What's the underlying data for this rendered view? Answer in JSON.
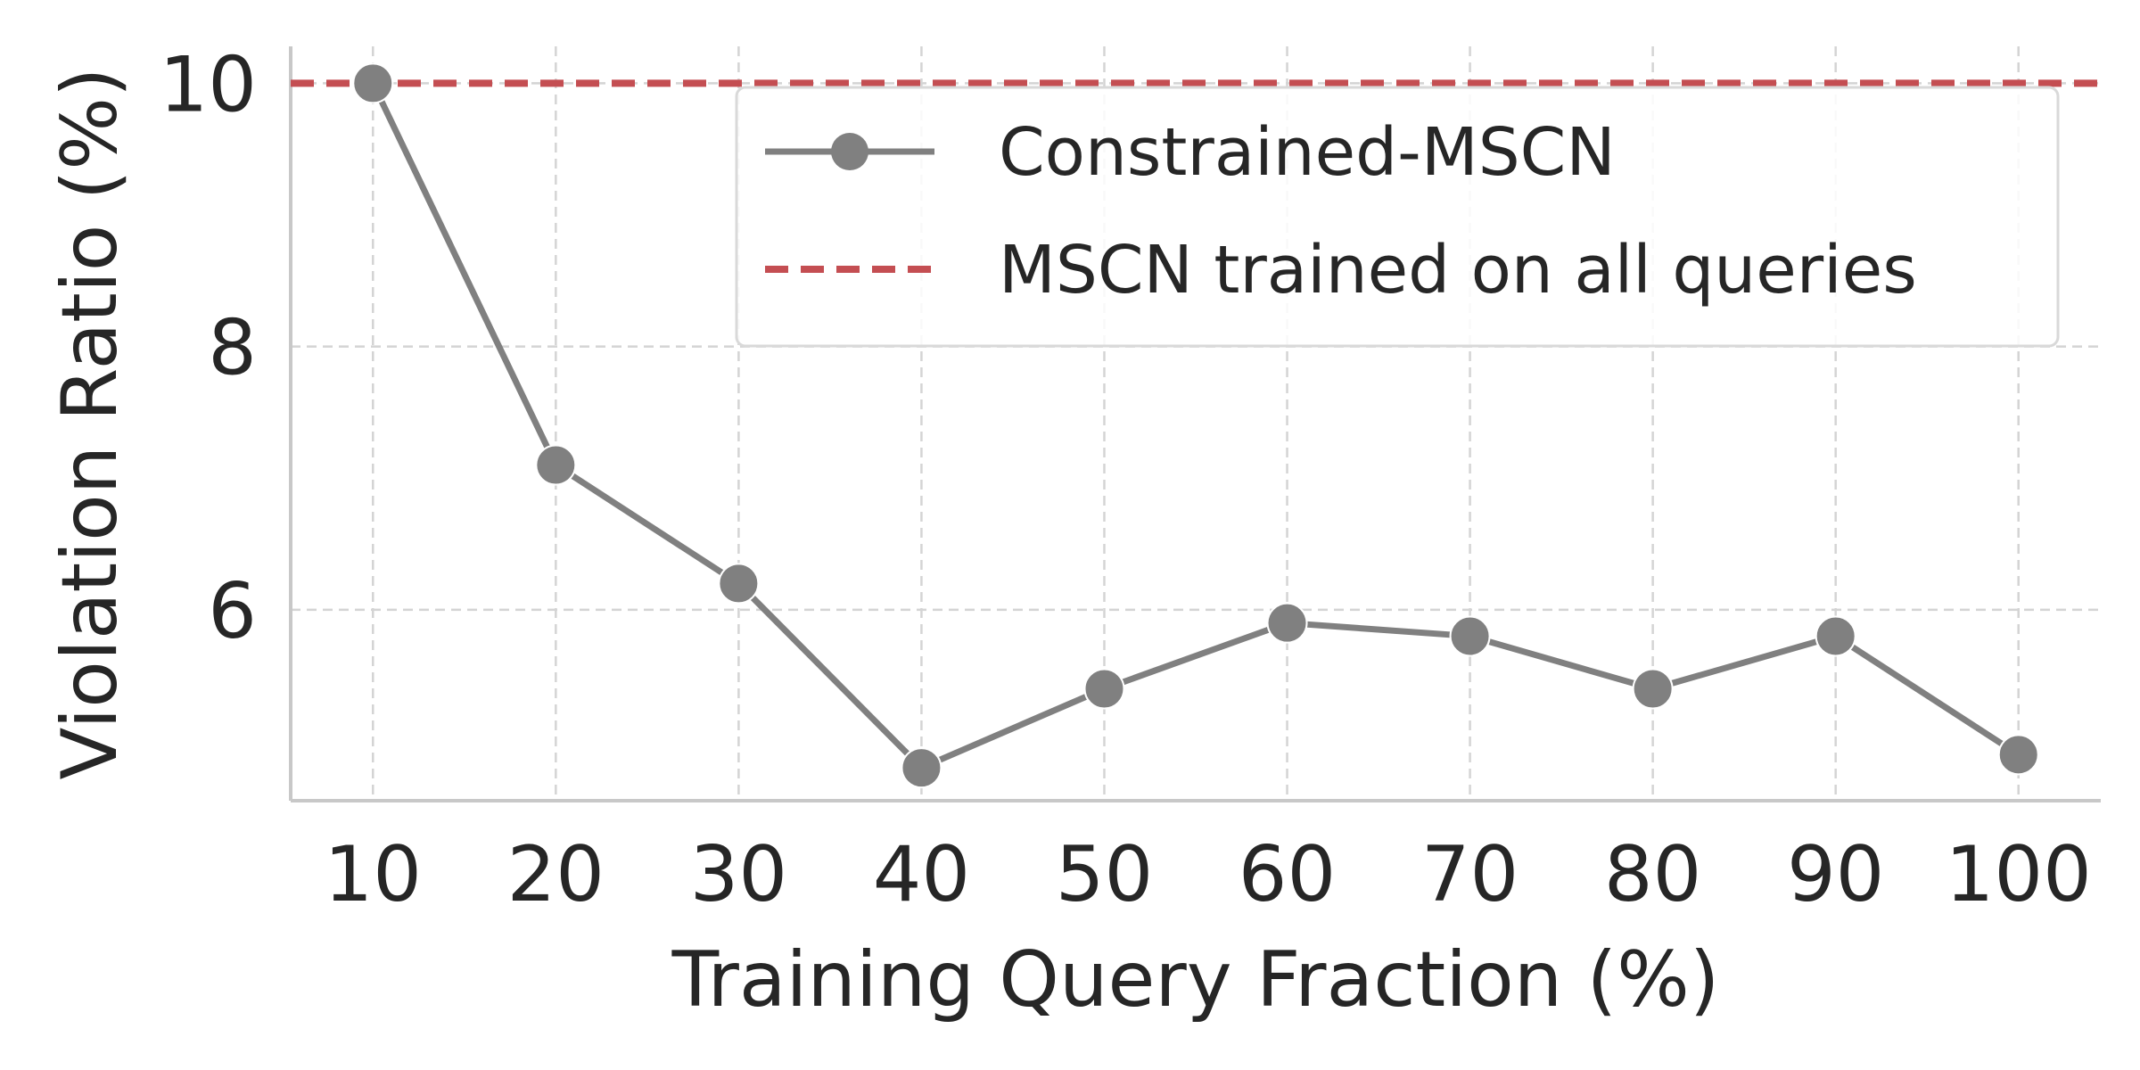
{
  "chart_data": {
    "type": "line",
    "title": "",
    "xlabel": "Training Query Fraction (%)",
    "ylabel": "Violation Ratio (%)",
    "x": [
      10,
      20,
      30,
      40,
      50,
      60,
      70,
      80,
      90,
      100
    ],
    "x_tick_labels": [
      "10",
      "20",
      "30",
      "40",
      "50",
      "60",
      "70",
      "80",
      "90",
      "100"
    ],
    "y_ticks": [
      6,
      8,
      10
    ],
    "y_tick_labels": [
      "6",
      "8",
      "10"
    ],
    "xlim": [
      5.5,
      104.5
    ],
    "ylim": [
      4.55,
      10.28
    ],
    "grid": true,
    "legend_position": "top-right",
    "series": [
      {
        "name": "Constrained-MSCN",
        "style": "solid-line-with-markers",
        "color": "#808080",
        "values": [
          10.0,
          7.1,
          6.2,
          4.8,
          5.4,
          5.9,
          5.8,
          5.4,
          5.8,
          4.9
        ]
      }
    ],
    "reference_lines": [
      {
        "name": "MSCN trained on all queries",
        "style": "dashed",
        "color": "#c44e52",
        "y": 10.0
      }
    ]
  }
}
